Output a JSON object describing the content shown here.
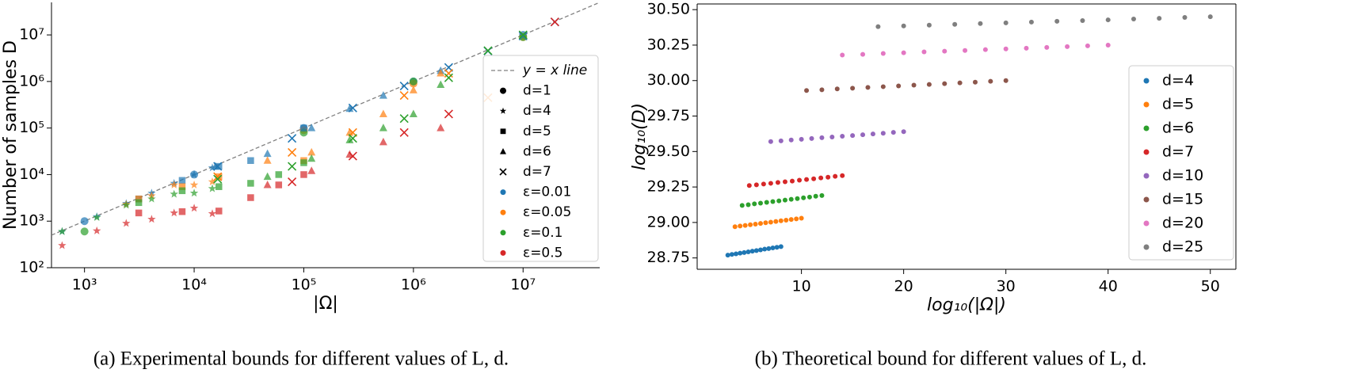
{
  "chart_data": [
    {
      "type": "scatter",
      "xscale": "log",
      "yscale": "log",
      "xlabel": "|Ω|",
      "ylabel": "Number of samples D",
      "caption": "(a) Experimental bounds for different values of L, d.",
      "xlim": [
        500,
        50000000
      ],
      "ylim": [
        100,
        50000000
      ],
      "xticks": [
        {
          "value": 1000,
          "label": "10³"
        },
        {
          "value": 10000,
          "label": "10⁴"
        },
        {
          "value": 100000,
          "label": "10⁵"
        },
        {
          "value": 1000000,
          "label": "10⁶"
        },
        {
          "value": 10000000,
          "label": "10⁷"
        }
      ],
      "yticks": [
        {
          "value": 100,
          "label": "10²"
        },
        {
          "value": 1000,
          "label": "10³"
        },
        {
          "value": 10000,
          "label": "10⁴"
        },
        {
          "value": 100000,
          "label": "10⁵"
        },
        {
          "value": 1000000,
          "label": "10⁶"
        },
        {
          "value": 10000000,
          "label": "10⁷"
        }
      ],
      "legend_position": "center right",
      "reference_line": {
        "name": "y = x line",
        "color": "#808080",
        "style": "dashed",
        "x": [
          500,
          50000000
        ],
        "values": [
          500,
          50000000
        ]
      },
      "legend": [
        {
          "label": "d=1",
          "marker": "circle"
        },
        {
          "label": "d=4",
          "marker": "star"
        },
        {
          "label": "d=5",
          "marker": "square"
        },
        {
          "label": "d=6",
          "marker": "triangle"
        },
        {
          "label": "d=7",
          "marker": "x"
        },
        {
          "label": "ε=0.01",
          "color": "#1f77b4"
        },
        {
          "label": "ε=0.05",
          "color": "#ff7f0e"
        },
        {
          "label": "ε=0.1",
          "color": "#2ca02c"
        },
        {
          "label": "ε=0.5",
          "color": "#d62728"
        }
      ],
      "series": [
        {
          "marker": "circle",
          "color": "#1f77b4",
          "x": [
            1000,
            10000,
            100000,
            1000000,
            10000000
          ],
          "values": [
            1000,
            10000,
            100000,
            1000000,
            10000000
          ]
        },
        {
          "marker": "circle",
          "color": "#ff7f0e",
          "x": [
            100000,
            1000000,
            10000000
          ],
          "values": [
            90000,
            900000,
            9000000
          ]
        },
        {
          "marker": "circle",
          "color": "#2ca02c",
          "x": [
            1000,
            100000,
            1000000,
            10000000
          ],
          "values": [
            600,
            80000,
            1000000,
            9000000
          ]
        },
        {
          "marker": "star",
          "color": "#1f77b4",
          "x": [
            625,
            1296,
            2401,
            4096,
            6561,
            10000,
            14641
          ],
          "values": [
            600,
            1250,
            2400,
            4000,
            6500,
            10000,
            14000
          ]
        },
        {
          "marker": "star",
          "color": "#ff7f0e",
          "x": [
            2401,
            4096,
            6561,
            10000,
            14641
          ],
          "values": [
            2300,
            3500,
            6000,
            6000,
            7000
          ]
        },
        {
          "marker": "star",
          "color": "#2ca02c",
          "x": [
            625,
            1296,
            2401,
            4096,
            6561,
            10000,
            14641
          ],
          "values": [
            600,
            1200,
            2200,
            3000,
            3800,
            4000,
            5000
          ]
        },
        {
          "marker": "star",
          "color": "#d62728",
          "x": [
            625,
            1296,
            2401,
            4096,
            6561,
            10000,
            14641
          ],
          "values": [
            300,
            620,
            900,
            1100,
            1500,
            1900,
            1450
          ]
        },
        {
          "marker": "square",
          "color": "#1f77b4",
          "x": [
            3125,
            7776,
            16807,
            32768,
            100000
          ],
          "values": [
            3000,
            7500,
            15000,
            20000,
            100000
          ]
        },
        {
          "marker": "square",
          "color": "#ff7f0e",
          "x": [
            3125,
            7776,
            16807,
            100000
          ],
          "values": [
            3000,
            5500,
            9000,
            20000
          ]
        },
        {
          "marker": "square",
          "color": "#2ca02c",
          "x": [
            3125,
            7776,
            16807,
            32768,
            59049,
            100000
          ],
          "values": [
            2500,
            4500,
            5500,
            6500,
            10000,
            18000
          ]
        },
        {
          "marker": "square",
          "color": "#d62728",
          "x": [
            3125,
            7776,
            16807,
            32768,
            59049,
            100000
          ],
          "values": [
            1500,
            1600,
            1650,
            3200,
            6000,
            10000
          ]
        },
        {
          "marker": "triangle",
          "color": "#1f77b4",
          "x": [
            15625,
            46656,
            117649,
            262144,
            531441,
            1771561
          ],
          "values": [
            15000,
            28000,
            100000,
            260000,
            500000,
            1700000
          ]
        },
        {
          "marker": "triangle",
          "color": "#ff7f0e",
          "x": [
            46656,
            117649,
            262144,
            531441,
            1000000,
            1771561
          ],
          "values": [
            20000,
            30000,
            80000,
            200000,
            650000,
            1500000
          ]
        },
        {
          "marker": "triangle",
          "color": "#2ca02c",
          "x": [
            46656,
            117649,
            262144,
            531441,
            1000000,
            1771561
          ],
          "values": [
            9000,
            22000,
            55000,
            100000,
            200000,
            850000
          ]
        },
        {
          "marker": "triangle",
          "color": "#d62728",
          "x": [
            46656,
            117649,
            262144,
            531441,
            1771561
          ],
          "values": [
            6000,
            12000,
            27000,
            50000,
            100000
          ]
        },
        {
          "marker": "x",
          "color": "#1f77b4",
          "x": [
            16384,
            78125,
            279936,
            823543,
            2097152,
            4782969,
            10000000,
            19487171
          ],
          "values": [
            15000,
            60000,
            270000,
            800000,
            2000000,
            4500000,
            9500000,
            19000000
          ]
        },
        {
          "marker": "x",
          "color": "#ff7f0e",
          "x": [
            16384,
            78125,
            279936,
            823543,
            2097152,
            4782969
          ],
          "values": [
            9000,
            30000,
            80000,
            500000,
            1500000,
            450000
          ]
        },
        {
          "marker": "x",
          "color": "#2ca02c",
          "x": [
            16384,
            78125,
            279936,
            823543,
            2097152,
            4782969,
            10000000
          ],
          "values": [
            8000,
            15000,
            60000,
            160000,
            1200000,
            4600000,
            10000000
          ]
        },
        {
          "marker": "x",
          "color": "#d62728",
          "x": [
            78125,
            279936,
            823543,
            2097152,
            19487171
          ],
          "values": [
            7000,
            25000,
            80000,
            200000,
            19000000
          ]
        }
      ]
    },
    {
      "type": "scatter",
      "xlabel": "log₁₀(|Ω|)",
      "ylabel": "log₁₀(D)",
      "caption": "(b) Theoretical bound for different values of L, d.",
      "xlim": [
        -0.2,
        52.5
      ],
      "ylim": [
        28.67,
        30.54
      ],
      "xticks": [
        10,
        20,
        30,
        40,
        50
      ],
      "yticks": [
        28.75,
        {
          "value": 29,
          "label": "29.00"
        },
        29.25,
        {
          "value": 29.5,
          "label": "29.50"
        },
        29.75,
        {
          "value": 30,
          "label": "30.00"
        },
        30.25,
        {
          "value": 30.5,
          "label": "30.50"
        }
      ],
      "legend_position": "lower right",
      "series": [
        {
          "name": "d=4",
          "color": "#1f77b4",
          "x": [
            2.8,
            3.2,
            3.6,
            4.0,
            4.4,
            4.8,
            5.2,
            5.6,
            6.0,
            6.4,
            6.8,
            7.2,
            7.6,
            8.0
          ],
          "values": [
            28.77,
            28.775,
            28.779,
            28.784,
            28.788,
            28.793,
            28.798,
            28.802,
            28.807,
            28.812,
            28.816,
            28.821,
            28.825,
            28.83
          ]
        },
        {
          "name": "d=5",
          "color": "#ff7f0e",
          "x": [
            3.5,
            4.0,
            4.5,
            5.0,
            5.5,
            6.0,
            6.5,
            7.0,
            7.5,
            8.0,
            8.5,
            9.0,
            9.5,
            10.0
          ],
          "values": [
            28.97,
            28.975,
            28.979,
            28.984,
            28.988,
            28.993,
            28.998,
            29.002,
            29.007,
            29.012,
            29.016,
            29.021,
            29.025,
            29.03
          ]
        },
        {
          "name": "d=6",
          "color": "#2ca02c",
          "x": [
            4.2,
            4.8,
            5.4,
            6.0,
            6.6,
            7.2,
            7.8,
            8.4,
            9.0,
            9.6,
            10.2,
            10.8,
            11.4,
            12.0
          ],
          "values": [
            29.12,
            29.125,
            29.131,
            29.136,
            29.142,
            29.147,
            29.152,
            29.158,
            29.163,
            29.168,
            29.174,
            29.179,
            29.185,
            29.19
          ]
        },
        {
          "name": "d=7",
          "color": "#d62728",
          "x": [
            4.9,
            5.6,
            6.3,
            7.0,
            7.7,
            8.4,
            9.1,
            9.8,
            10.5,
            11.2,
            11.9,
            12.6,
            13.3,
            14.0
          ],
          "values": [
            29.26,
            29.265,
            29.271,
            29.276,
            29.282,
            29.287,
            29.292,
            29.298,
            29.303,
            29.308,
            29.314,
            29.319,
            29.325,
            29.33
          ]
        },
        {
          "name": "d=10",
          "color": "#9467bd",
          "x": [
            7,
            8,
            9,
            10,
            11,
            12,
            13,
            14,
            15,
            16,
            17,
            18,
            19,
            20
          ],
          "values": [
            29.57,
            29.575,
            29.581,
            29.586,
            29.592,
            29.597,
            29.602,
            29.608,
            29.613,
            29.618,
            29.624,
            29.629,
            29.635,
            29.64
          ]
        },
        {
          "name": "d=15",
          "color": "#8c564b",
          "x": [
            10.5,
            12,
            13.5,
            15,
            16.5,
            18,
            19.5,
            21,
            22.5,
            24,
            25.5,
            27,
            28.5,
            30
          ],
          "values": [
            29.93,
            29.935,
            29.941,
            29.946,
            29.952,
            29.957,
            29.962,
            29.968,
            29.973,
            29.978,
            29.984,
            29.989,
            29.995,
            30.0
          ]
        },
        {
          "name": "d=20",
          "color": "#e377c2",
          "x": [
            14,
            16,
            18,
            20,
            22,
            24,
            26,
            28,
            30,
            32,
            34,
            36,
            38,
            40
          ],
          "values": [
            30.18,
            30.185,
            30.191,
            30.196,
            30.202,
            30.207,
            30.212,
            30.218,
            30.223,
            30.228,
            30.234,
            30.239,
            30.245,
            30.25
          ]
        },
        {
          "name": "d=25",
          "color": "#7f7f7f",
          "x": [
            17.5,
            20,
            22.5,
            25,
            27.5,
            30,
            32.5,
            35,
            37.5,
            40,
            42.5,
            45,
            47.5,
            50
          ],
          "values": [
            30.38,
            30.385,
            30.391,
            30.396,
            30.402,
            30.407,
            30.412,
            30.418,
            30.423,
            30.428,
            30.434,
            30.439,
            30.445,
            30.45
          ]
        }
      ]
    }
  ]
}
